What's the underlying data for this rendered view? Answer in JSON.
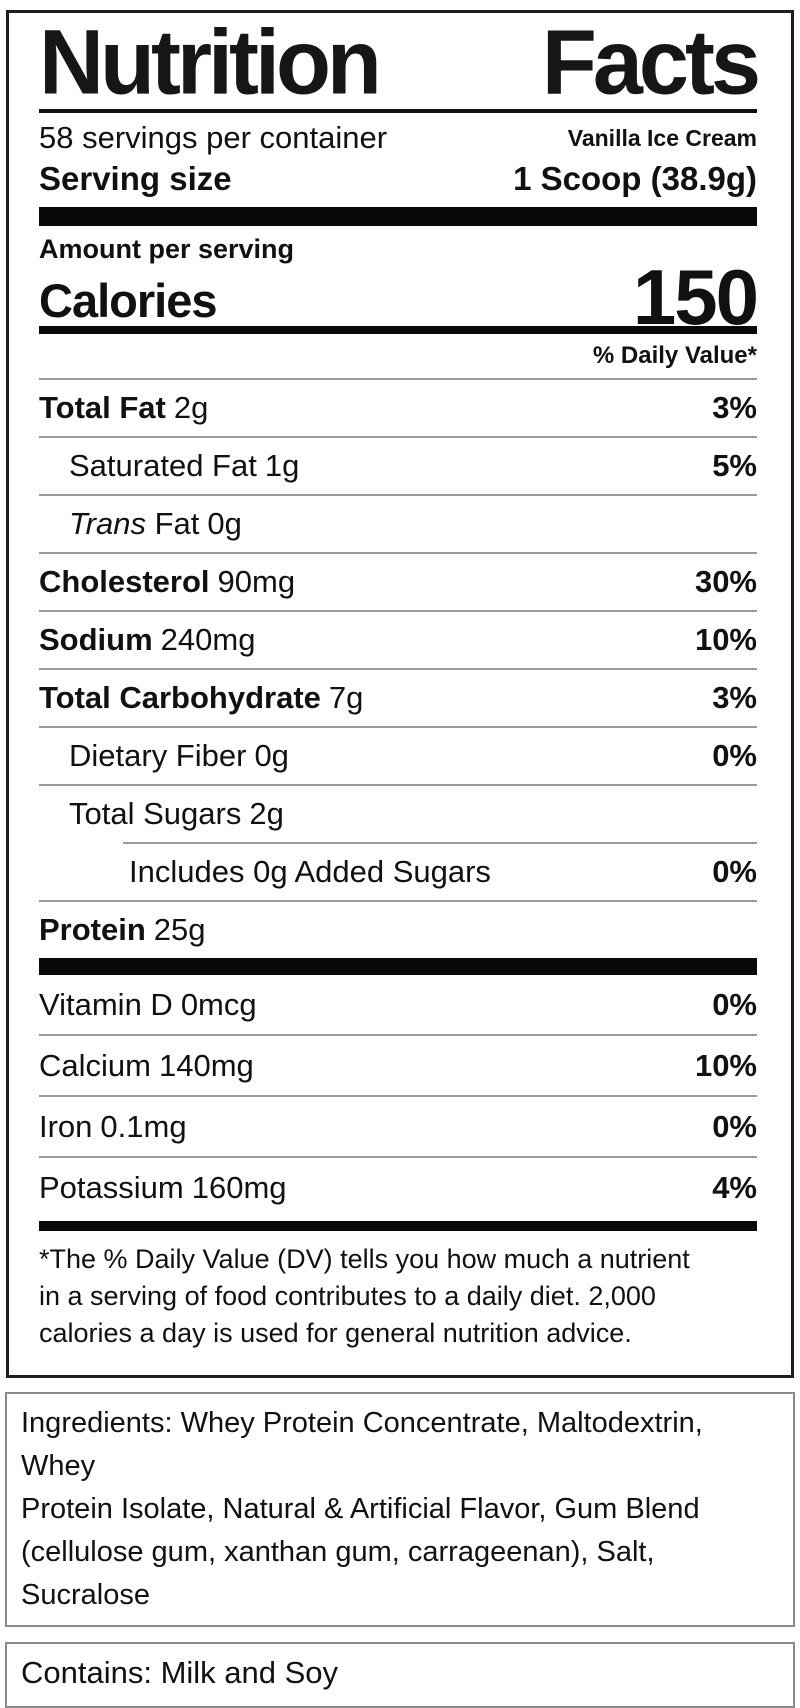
{
  "label": {
    "title_word1": "Nutrition",
    "title_word2": "Facts",
    "servings_per_container": "58 servings per container",
    "flavor": "Vanilla Ice Cream",
    "serving_size_label": "Serving size",
    "serving_size_value": "1 Scoop (38.9g)",
    "amount_per_serving": "Amount per serving",
    "calories_label": "Calories",
    "calories_value": "150",
    "daily_value_header": "% Daily Value*",
    "nutrients": [
      {
        "name": "Total Fat",
        "amount": "2g",
        "dv": "3%",
        "bold": true,
        "indent": 0,
        "sep": "full"
      },
      {
        "name": "Saturated Fat",
        "amount": "1g",
        "dv": "5%",
        "bold": false,
        "indent": 1,
        "sep": "full"
      },
      {
        "name_italic": "Trans",
        "name": "Fat",
        "amount": "0g",
        "dv": "",
        "bold": false,
        "indent": 1,
        "sep": "full"
      },
      {
        "name": "Cholesterol",
        "amount": "90mg",
        "dv": "30%",
        "bold": true,
        "indent": 0,
        "sep": "full"
      },
      {
        "name": "Sodium",
        "amount": "240mg",
        "dv": "10%",
        "bold": true,
        "indent": 0,
        "sep": "full"
      },
      {
        "name": "Total Carbohydrate",
        "amount": "7g",
        "dv": "3%",
        "bold": true,
        "indent": 0,
        "sep": "full"
      },
      {
        "name": "Dietary Fiber",
        "amount": "0g",
        "dv": "0%",
        "bold": false,
        "indent": 1,
        "sep": "full"
      },
      {
        "name": "Total Sugars",
        "amount": "2g",
        "dv": "",
        "bold": false,
        "indent": 1,
        "sep": "full"
      },
      {
        "name": "Includes 0g Added Sugars",
        "amount": "",
        "dv": "0%",
        "bold": false,
        "indent": 2,
        "sep": "indent"
      },
      {
        "name": "Protein",
        "amount": "25g",
        "dv": "",
        "bold": true,
        "indent": 0,
        "sep": "full"
      }
    ],
    "vitamins": [
      {
        "name": "Vitamin D",
        "amount": "0mcg",
        "dv": "0%",
        "bold": false,
        "indent": 0,
        "sep": "none"
      },
      {
        "name": "Calcium",
        "amount": "140mg",
        "dv": "10%",
        "bold": false,
        "indent": 0,
        "sep": "full"
      },
      {
        "name": "Iron",
        "amount": "0.1mg",
        "dv": "0%",
        "bold": false,
        "indent": 0,
        "sep": "full"
      },
      {
        "name": "Potassium",
        "amount": "160mg",
        "dv": "4%",
        "bold": false,
        "indent": 0,
        "sep": "full"
      }
    ],
    "footnote_lines": [
      "*The % Daily Value (DV) tells you how much a nutrient",
      "in a serving of food contributes to a daily diet. 2,000",
      "calories a day is used for general nutrition advice."
    ]
  },
  "ingredients": {
    "lines": [
      "Ingredients: Whey Protein Concentrate, Maltodextrin, Whey",
      "Protein Isolate, Natural & Artificial Flavor, Gum Blend",
      "(cellulose gum, xanthan gum, carrageenan), Salt, Sucralose"
    ]
  },
  "contains": {
    "text": "Contains: Milk and Soy"
  },
  "colors": {
    "text": "#111111",
    "bars": "#090909",
    "separator": "#999999",
    "box_border": "#1d1d1d",
    "sub_box_border": "#8a8a8a",
    "background": "#ffffff"
  }
}
